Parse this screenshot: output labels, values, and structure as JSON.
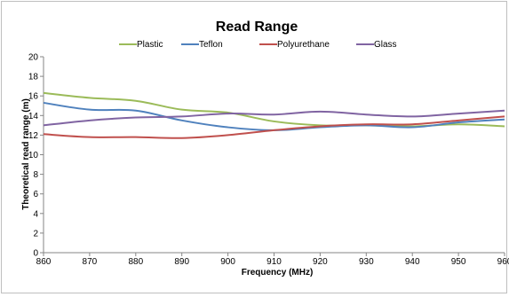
{
  "chart_data": {
    "type": "line",
    "title": "Read Range",
    "xlabel": "Frequency (MHz)",
    "ylabel": "Theoretical read range (m)",
    "xlim": [
      860,
      960
    ],
    "ylim": [
      0,
      20
    ],
    "xticks": [
      860,
      870,
      880,
      890,
      900,
      910,
      920,
      930,
      940,
      950,
      960
    ],
    "yticks": [
      0,
      2,
      4,
      6,
      8,
      10,
      12,
      14,
      16,
      18,
      20
    ],
    "grid": false,
    "legend_position": "top",
    "x": [
      860,
      870,
      880,
      890,
      900,
      910,
      920,
      930,
      940,
      950,
      960
    ],
    "series": [
      {
        "name": "Plastic",
        "color": "#9BBB59",
        "values": [
          16.3,
          15.8,
          15.5,
          14.6,
          14.3,
          13.4,
          13.0,
          13.0,
          12.9,
          13.1,
          12.9
        ]
      },
      {
        "name": "Teflon",
        "color": "#4F81BD",
        "values": [
          15.3,
          14.6,
          14.5,
          13.5,
          12.8,
          12.5,
          12.8,
          13.0,
          12.8,
          13.3,
          13.6
        ]
      },
      {
        "name": "Polyurethane",
        "color": "#C0504D",
        "values": [
          12.1,
          11.8,
          11.8,
          11.7,
          12.0,
          12.5,
          12.9,
          13.1,
          13.1,
          13.5,
          13.9
        ]
      },
      {
        "name": "Glass",
        "color": "#8064A2",
        "values": [
          13.0,
          13.5,
          13.8,
          13.9,
          14.2,
          14.1,
          14.4,
          14.1,
          13.9,
          14.2,
          14.5
        ]
      }
    ]
  }
}
